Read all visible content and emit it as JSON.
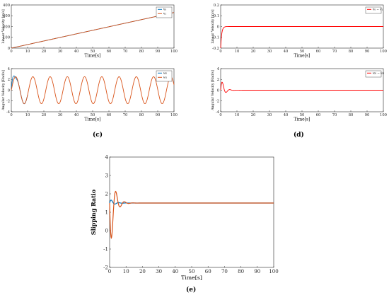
{
  "captions": {
    "c": "(c)",
    "d": "(d)",
    "e": "(e)"
  },
  "chart_data": [
    {
      "panel": "c-top",
      "type": "line",
      "xlabel": "Time[s]",
      "ylabel": "Linear Velocity [m/s]",
      "xlim": [
        0,
        100
      ],
      "ylim": [
        0,
        400
      ],
      "xticks": [
        0,
        10,
        20,
        30,
        40,
        50,
        60,
        70,
        80,
        90,
        100
      ],
      "yticks": [
        0,
        100,
        200,
        300,
        400
      ],
      "legend_position": "top-right",
      "series": [
        {
          "name": "v₀",
          "color": "#0072BD",
          "model": "ramp",
          "params": {
            "slope": 3.3
          },
          "x": [
            0,
            100
          ],
          "y": [
            0,
            330
          ]
        },
        {
          "name": "v₁",
          "color": "#D95319",
          "model": "ramp",
          "params": {
            "slope": 3.3
          },
          "x": [
            0,
            100
          ],
          "y": [
            0,
            330
          ]
        }
      ]
    },
    {
      "panel": "c-bottom",
      "type": "line",
      "xlabel": "Time[s]",
      "ylabel": "Angular Velocity [Rad/s]",
      "xlim": [
        0,
        100
      ],
      "ylim": [
        -4,
        4
      ],
      "xticks": [
        0,
        10,
        20,
        30,
        40,
        50,
        60,
        70,
        80,
        90,
        100
      ],
      "yticks": [
        -4,
        -2,
        0,
        2,
        4
      ],
      "legend_position": "top-right",
      "series": [
        {
          "name": "ω₀",
          "color": "#0072BD",
          "model": "sine-settling",
          "params": {
            "amp": 2.5,
            "period": 10.6,
            "transient_amp": 1.8,
            "transient_freq": 1.35,
            "decay": 0.55,
            "show_until": 10
          }
        },
        {
          "name": "ω₁",
          "color": "#D95319",
          "model": "sine",
          "params": {
            "amp": 2.5,
            "period": 10.6
          }
        }
      ]
    },
    {
      "panel": "d-top",
      "type": "line",
      "xlabel": "Time[s]",
      "ylabel": "Linear Velocity [m/s]",
      "xlim": [
        0,
        100
      ],
      "ylim": [
        -0.2,
        0.2
      ],
      "xticks": [
        0,
        10,
        20,
        30,
        40,
        50,
        60,
        70,
        80,
        90,
        100
      ],
      "yticks": [
        -0.2,
        -0.1,
        0,
        0.1,
        0.2
      ],
      "legend_position": "top-right",
      "series": [
        {
          "name": "v₀ − v₁",
          "color": "#FF0000",
          "model": "step-rise",
          "params": {
            "start": -0.2,
            "end": 0.0,
            "rate": 1.6
          }
        }
      ]
    },
    {
      "panel": "d-bottom",
      "type": "line",
      "xlabel": "Time[s]",
      "ylabel": "Angular Velocity [Rad/s]",
      "xlim": [
        0,
        100
      ],
      "ylim": [
        -4,
        4
      ],
      "xticks": [
        0,
        10,
        20,
        30,
        40,
        50,
        60,
        70,
        80,
        90,
        100
      ],
      "yticks": [
        -4,
        -2,
        0,
        2,
        4
      ],
      "legend_position": "top-right",
      "series": [
        {
          "name": "ω₀ − ω₁",
          "color": "#FF0000",
          "model": "damped",
          "params": {
            "amp": 2.6,
            "freq": 1.35,
            "decay": 0.55,
            "offset": 0
          }
        }
      ]
    },
    {
      "panel": "e",
      "type": "line",
      "xlabel": "Time[s]",
      "ylabel": "Slipping Ratio",
      "xlim": [
        0,
        100
      ],
      "ylim": [
        -2,
        4
      ],
      "xticks": [
        0,
        10,
        20,
        30,
        40,
        50,
        60,
        70,
        80,
        90,
        100
      ],
      "yticks": [
        -2,
        -1,
        0,
        1,
        2,
        3,
        4
      ],
      "legend_position": "none",
      "series": [
        {
          "name": "",
          "color": "#0072BD",
          "model": "damped",
          "params": {
            "amp": 0.25,
            "freq": 1.4,
            "decay": 0.45,
            "offset": 1.5
          }
        },
        {
          "name": "",
          "color": "#D95319",
          "model": "damped",
          "params": {
            "amp": 3.1,
            "freq": 1.2,
            "decay": 0.42,
            "offset": 1.5,
            "phase": 3.14159
          }
        }
      ]
    }
  ]
}
